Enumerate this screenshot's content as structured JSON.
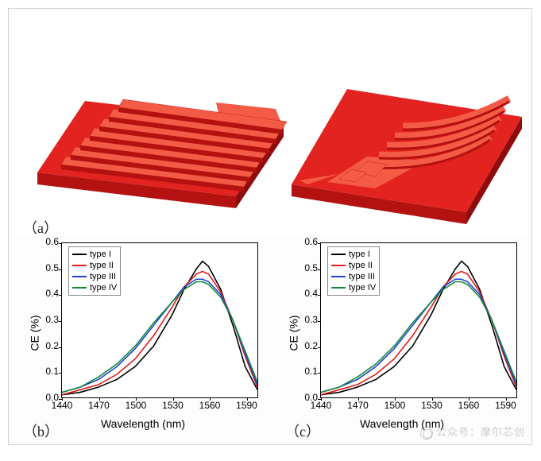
{
  "panels": {
    "a": {
      "label": "（a）"
    },
    "b": {
      "label": "（b）"
    },
    "c": {
      "label": "（c）"
    }
  },
  "render3d": {
    "base_color": "#e3231f",
    "shade_top": "#f45b47",
    "shade_side": "#b31210",
    "shade_dark": "#8e0d0c",
    "background": "#ffffff"
  },
  "chart": {
    "type": "line",
    "xlabel": "Wavelength (nm)",
    "ylabel": "CE (%)",
    "xlim": [
      1440,
      1600
    ],
    "ylim": [
      0,
      0.6
    ],
    "xticks": [
      1440,
      1470,
      1500,
      1530,
      1560,
      1590
    ],
    "yticks": [
      0,
      0.1,
      0.2,
      0.3,
      0.4,
      0.5,
      0.6
    ],
    "tick_fontsize": 12,
    "label_fontsize": 14,
    "background_color": "#ffffff",
    "border_color": "#000000",
    "line_width": 1.6,
    "series": [
      {
        "name": "type I",
        "color": "#000000"
      },
      {
        "name": "type II",
        "color": "#e11b1b"
      },
      {
        "name": "type III",
        "color": "#1f3fd4"
      },
      {
        "name": "type IV",
        "color": "#128a3a"
      }
    ],
    "data_b": {
      "x": [
        1440,
        1455,
        1470,
        1485,
        1500,
        1515,
        1530,
        1540,
        1550,
        1555,
        1560,
        1570,
        1580,
        1590,
        1600
      ],
      "typeI": [
        0.01,
        0.02,
        0.04,
        0.07,
        0.12,
        0.2,
        0.32,
        0.42,
        0.5,
        0.53,
        0.51,
        0.42,
        0.28,
        0.12,
        0.03
      ],
      "typeII": [
        0.01,
        0.03,
        0.05,
        0.09,
        0.15,
        0.24,
        0.35,
        0.43,
        0.48,
        0.49,
        0.48,
        0.41,
        0.3,
        0.16,
        0.04
      ],
      "typeIII": [
        0.02,
        0.04,
        0.07,
        0.12,
        0.19,
        0.28,
        0.37,
        0.43,
        0.46,
        0.46,
        0.45,
        0.4,
        0.3,
        0.17,
        0.05
      ],
      "typeIV": [
        0.02,
        0.04,
        0.08,
        0.13,
        0.2,
        0.29,
        0.37,
        0.42,
        0.45,
        0.45,
        0.44,
        0.39,
        0.3,
        0.18,
        0.06
      ]
    },
    "data_c": {
      "x": [
        1440,
        1455,
        1470,
        1485,
        1500,
        1515,
        1530,
        1540,
        1550,
        1555,
        1560,
        1570,
        1580,
        1590,
        1600
      ],
      "typeI": [
        0.01,
        0.02,
        0.04,
        0.07,
        0.12,
        0.2,
        0.32,
        0.42,
        0.5,
        0.53,
        0.51,
        0.42,
        0.28,
        0.12,
        0.03
      ],
      "typeII": [
        0.01,
        0.03,
        0.05,
        0.09,
        0.15,
        0.24,
        0.35,
        0.43,
        0.48,
        0.49,
        0.48,
        0.41,
        0.3,
        0.16,
        0.04
      ],
      "typeIII": [
        0.02,
        0.04,
        0.07,
        0.12,
        0.19,
        0.28,
        0.37,
        0.43,
        0.46,
        0.46,
        0.45,
        0.4,
        0.3,
        0.17,
        0.05
      ],
      "typeIV": [
        0.02,
        0.04,
        0.08,
        0.13,
        0.2,
        0.29,
        0.37,
        0.42,
        0.45,
        0.45,
        0.44,
        0.39,
        0.3,
        0.18,
        0.06
      ]
    }
  },
  "watermark": {
    "text": "公众号：摩尔芯创",
    "color": "rgba(140,140,140,0.45)"
  }
}
